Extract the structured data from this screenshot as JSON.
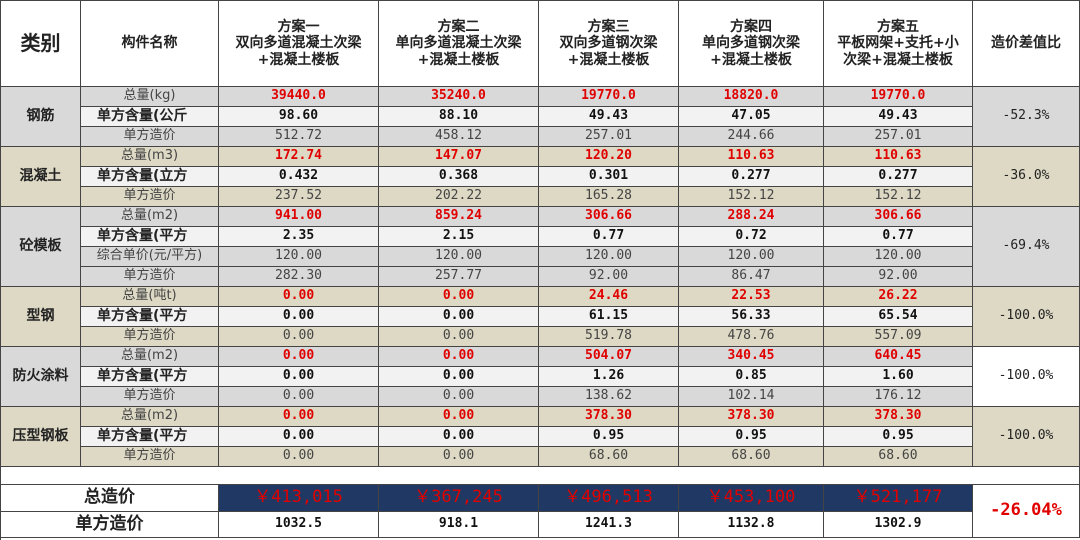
{
  "header": {
    "category": "类别",
    "component_name": "构件名称",
    "schemes": [
      "方案一\n双向多道混凝土次梁\n+混凝土楼板",
      "方案二\n单向多道混凝土次梁\n+混凝土楼板",
      "方案三\n双向多道钢次梁\n+混凝土楼板",
      "方案四\n单向多道钢次梁\n+混凝土楼板",
      "方案五\n平板网架+支托+小\n次梁+混凝土楼板"
    ],
    "ratio": "造价差值比"
  },
  "groups": [
    {
      "name": "钢筋",
      "ratio": "-52.3%",
      "rows": [
        {
          "label": "总量(kg)",
          "values": [
            "39440.0",
            "35240.0",
            "19770.0",
            "18820.0",
            "19770.0"
          ]
        },
        {
          "label": "单方含量(公斤",
          "values": [
            "98.60",
            "88.10",
            "49.43",
            "47.05",
            "49.43"
          ]
        },
        {
          "label": "单方造价",
          "values": [
            "512.72",
            "458.12",
            "257.01",
            "244.66",
            "257.01"
          ]
        }
      ]
    },
    {
      "name": "混凝土",
      "ratio": "-36.0%",
      "rows": [
        {
          "label": "总量(m3)",
          "values": [
            "172.74",
            "147.07",
            "120.20",
            "110.63",
            "110.63"
          ]
        },
        {
          "label": "单方含量(立方",
          "values": [
            "0.432",
            "0.368",
            "0.301",
            "0.277",
            "0.277"
          ]
        },
        {
          "label": "单方造价",
          "values": [
            "237.52",
            "202.22",
            "165.28",
            "152.12",
            "152.12"
          ]
        }
      ]
    },
    {
      "name": "砼模板",
      "ratio": "-69.4%",
      "rows": [
        {
          "label": "总量(m2)",
          "values": [
            "941.00",
            "859.24",
            "306.66",
            "288.24",
            "306.66"
          ]
        },
        {
          "label": "单方含量(平方",
          "values": [
            "2.35",
            "2.15",
            "0.77",
            "0.72",
            "0.77"
          ]
        },
        {
          "label": "综合单价(元/平方)",
          "values": [
            "120.00",
            "120.00",
            "120.00",
            "120.00",
            "120.00"
          ]
        },
        {
          "label": "单方造价",
          "values": [
            "282.30",
            "257.77",
            "92.00",
            "86.47",
            "92.00"
          ]
        }
      ]
    },
    {
      "name": "型钢",
      "ratio": "-100.0%",
      "rows": [
        {
          "label": "总量(吨t)",
          "values": [
            "0.00",
            "0.00",
            "24.46",
            "22.53",
            "26.22"
          ]
        },
        {
          "label": "单方含量(平方",
          "values": [
            "0.00",
            "0.00",
            "61.15",
            "56.33",
            "65.54"
          ]
        },
        {
          "label": "单方造价",
          "values": [
            "0.00",
            "0.00",
            "519.78",
            "478.76",
            "557.09"
          ]
        }
      ]
    },
    {
      "name": "防火涂料",
      "ratio": "-100.0%",
      "rows": [
        {
          "label": "总量(m2)",
          "values": [
            "0.00",
            "0.00",
            "504.07",
            "340.45",
            "640.45"
          ]
        },
        {
          "label": "单方含量(平方",
          "values": [
            "0.00",
            "0.00",
            "1.26",
            "0.85",
            "1.60"
          ]
        },
        {
          "label": "单方造价",
          "values": [
            "0.00",
            "0.00",
            "138.62",
            "102.14",
            "176.12"
          ]
        }
      ]
    },
    {
      "name": "压型钢板",
      "ratio": "-100.0%",
      "rows": [
        {
          "label": "总量(m2)",
          "values": [
            "0.00",
            "0.00",
            "378.30",
            "378.30",
            "378.30"
          ]
        },
        {
          "label": "单方含量(平方",
          "values": [
            "0.00",
            "0.00",
            "0.95",
            "0.95",
            "0.95"
          ]
        },
        {
          "label": "单方造价",
          "values": [
            "0.00",
            "0.00",
            "68.60",
            "68.60",
            "68.60"
          ]
        }
      ]
    }
  ],
  "totals": {
    "total_label": "总造价",
    "total_values": [
      "￥413,015",
      "￥367,245",
      "￥496,513",
      "￥453,100",
      "￥521,177"
    ],
    "unit_label": "单方造价",
    "unit_values": [
      "1032.5",
      "918.1",
      "1241.3",
      "1132.8",
      "1302.9"
    ],
    "ratio": "-26.04%"
  }
}
